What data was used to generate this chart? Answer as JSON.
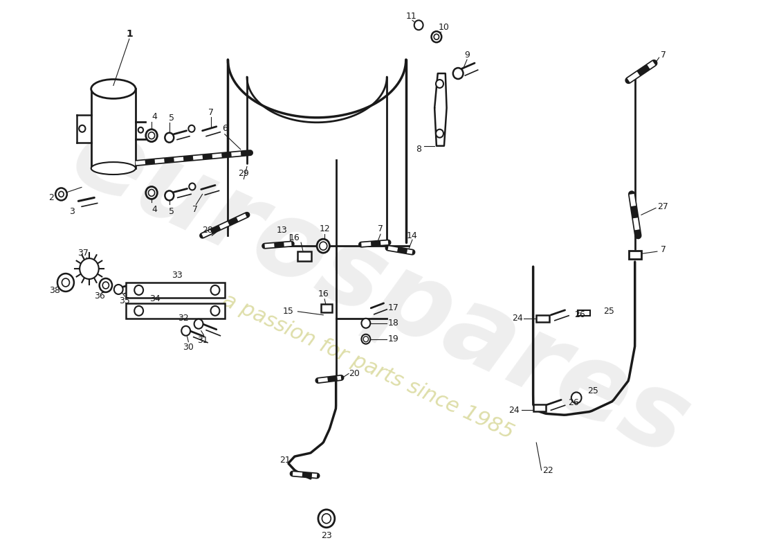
{
  "bg_color": "#ffffff",
  "line_color": "#1a1a1a",
  "watermark1": "eurospares",
  "watermark2": "a passion for parts since 1985",
  "fig_w": 11.0,
  "fig_h": 8.0,
  "dpi": 100
}
